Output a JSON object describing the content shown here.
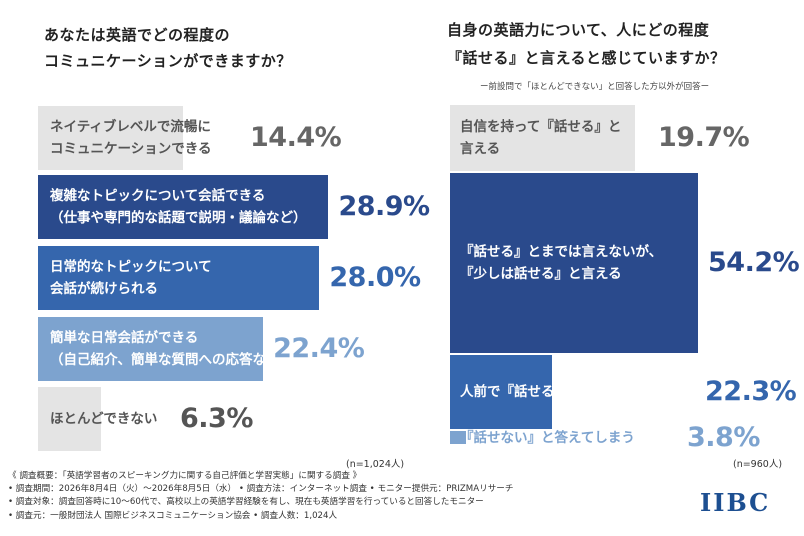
{
  "left": {
    "title_lines": [
      "あなたは英語でどの程度の",
      "コミュニケーションができますか？"
    ],
    "n_label": "(n=1,024人)"
  },
  "right": {
    "title_lines": [
      "自身の英語力について、人にどの程度",
      "『話せる』と言えると感じていますか？"
    ],
    "note": "ー前設問で「ほとんどできない」と回答した方以外が回答ー",
    "n_label": "(n=960人)"
  },
  "chart_data": [
    {
      "type": "bar",
      "title": "あなたは英語でどの程度のコミュニケーションができますか？",
      "orientation": "horizontal",
      "categories": [
        "ネイティブレベルで流暢にコミュニケーションできる",
        "複雑なトピックについて会話できる（仕事や専門的な話題で説明・議論など）",
        "日常的なトピックについて会話が続けられる",
        "簡単な日常会話ができる（自己紹介、簡単な質問への応答など）",
        "ほとんどできない"
      ],
      "category_lines": [
        [
          "ネイティブレベルで流暢に",
          "コミュニケーションできる"
        ],
        [
          "複雑なトピックについて会話できる",
          "（仕事や専門的な話題で説明・議論など）"
        ],
        [
          "日常的なトピックについて",
          "会話が続けられる"
        ],
        [
          "簡単な日常会話ができる",
          "（自己紹介、簡単な質問への応答など）"
        ],
        [
          "ほとんどできない"
        ]
      ],
      "values": [
        14.4,
        28.9,
        28.0,
        22.4,
        6.3
      ],
      "value_labels": [
        "14.4%",
        "28.9%",
        "28.0%",
        "22.4%",
        "6.3%"
      ],
      "bar_colors": [
        "#e4e4e4",
        "#2a4a8c",
        "#3566ad",
        "#7da3cf",
        "#e4e4e4"
      ],
      "label_colors": [
        "#555555",
        "#ffffff",
        "#ffffff",
        "#ffffff",
        "#555555"
      ],
      "pct_colors": [
        "#666666",
        "#2a4a8c",
        "#3566ad",
        "#7da3cf",
        "#555555"
      ],
      "unit": "%",
      "n": "(n=1,024人)"
    },
    {
      "type": "bar",
      "title": "自身の英語力について、人にどの程度『話せる』と言えると感じていますか？",
      "orientation": "vertical",
      "categories": [
        "自信を持って『話せる』と言える",
        "『話せる』とまでは言えないが、『少しは話せる』と言える",
        "人前で『話せる』とは言えない",
        "『話せない』と答えてしまう"
      ],
      "category_lines": [
        [
          "自信を持って『話せる』と",
          "言える"
        ],
        [
          "『話せる』とまでは言えないが、",
          "『少しは話せる』と言える"
        ],
        [
          "人前で『話せる』とは言えない"
        ],
        [
          "『話せない』と答えてしまう"
        ]
      ],
      "values": [
        19.7,
        54.2,
        22.3,
        3.8
      ],
      "value_labels": [
        "19.7%",
        "54.2%",
        "22.3%",
        "3.8%"
      ],
      "bar_colors": [
        "#e4e4e4",
        "#2a4a8c",
        "#3566ad",
        "#7da3cf"
      ],
      "label_colors": [
        "#555555",
        "#ffffff",
        "#ffffff",
        "#7da3cf"
      ],
      "pct_colors": [
        "#666666",
        "#2a4a8c",
        "#3566ad",
        "#7da3cf"
      ],
      "unit": "%",
      "n": "(n=960人)"
    }
  ],
  "footer": {
    "lines": [
      "《 調査概要：「英語学習者のスピーキング力に関する自己評価と学習実態」に関する調査 》",
      "• 調査期間：2026年8月4日（火）～2026年8月5日（水）  • 調査方法：インターネット調査    • モニター提供元：PRIZMAリサーチ",
      "• 調査対象：調査回答時に10～60代で、高校以上の英語学習経験を有し、現在も英語学習を行っていると回答したモニター",
      "• 調査元：一般財団法人 国際ビジネスコミュニケーション協会      • 調査人数：1,024人"
    ]
  },
  "logo": {
    "text": "IIBC"
  }
}
